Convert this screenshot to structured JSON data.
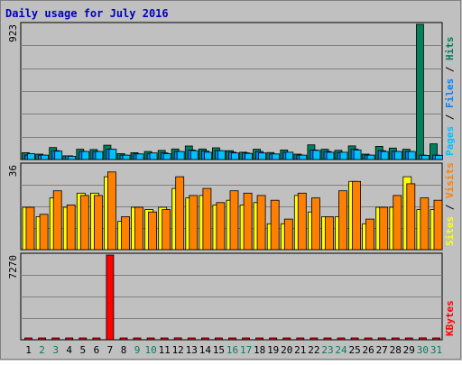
{
  "chart_data": {
    "type": "bar",
    "title": "Daily usage for July 2016",
    "categories": [
      "1",
      "2",
      "3",
      "4",
      "5",
      "6",
      "7",
      "8",
      "9",
      "10",
      "11",
      "12",
      "13",
      "14",
      "15",
      "16",
      "17",
      "18",
      "19",
      "20",
      "21",
      "22",
      "23",
      "24",
      "25",
      "26",
      "27",
      "28",
      "29",
      "30",
      "31"
    ],
    "weekend_days": [
      "2",
      "3",
      "9",
      "10",
      "16",
      "17",
      "23",
      "24",
      "30",
      "31"
    ],
    "panels": [
      {
        "id": "hits-files-pages",
        "max_label": "923",
        "ylim": [
          0,
          923
        ],
        "legend": [
          "Pages",
          "Files",
          "Hits"
        ],
        "series": [
          {
            "name": "Hits",
            "color": "#00805c",
            "values": [
              47,
              37,
              82,
              25,
              70,
              68,
              98,
              40,
              47,
              55,
              62,
              72,
              92,
              72,
              80,
              60,
              50,
              70,
              48,
              65,
              37,
              100,
              70,
              63,
              93,
              37,
              90,
              78,
              70,
              923,
              107
            ]
          },
          {
            "name": "Files",
            "color": "#0080ff",
            "values": [
              30,
              30,
              60,
              25,
              55,
              55,
              70,
              30,
              38,
              40,
              45,
              55,
              65,
              58,
              60,
              50,
              45,
              55,
              38,
              50,
              30,
              65,
              55,
              48,
              70,
              30,
              60,
              55,
              55,
              30,
              30
            ]
          },
          {
            "name": "Pages",
            "color": "#00c0ff",
            "values": [
              40,
              30,
              57,
              22,
              55,
              55,
              70,
              30,
              38,
              45,
              40,
              55,
              60,
              50,
              60,
              45,
              42,
              45,
              38,
              50,
              30,
              62,
              50,
              50,
              65,
              30,
              55,
              55,
              55,
              28,
              28
            ]
          }
        ]
      },
      {
        "id": "visits-sites",
        "max_label": "36",
        "ylim": [
          0,
          36
        ],
        "legend": [
          "Sites",
          "Visits"
        ],
        "series": [
          {
            "name": "Sites",
            "color": "#ffff00",
            "values": [
              18,
              14,
              22,
              18,
              24,
              24,
              31,
              12,
              18,
              17,
              18,
              26,
              22,
              23,
              19,
              21,
              19,
              20,
              11,
              11,
              23,
              16,
              14,
              14,
              29,
              11,
              18,
              18,
              31,
              17,
              17
            ]
          },
          {
            "name": "Visits",
            "color": "#ff8000",
            "values": [
              18,
              15,
              25,
              19,
              23,
              23,
              33,
              14,
              18,
              16,
              17,
              31,
              23,
              26,
              20,
              25,
              24,
              23,
              21,
              13,
              24,
              22,
              14,
              25,
              29,
              13,
              18,
              23,
              28,
              22,
              21
            ]
          }
        ]
      },
      {
        "id": "kbytes",
        "max_label": "7270",
        "ylim": [
          0,
          7270
        ],
        "legend": [
          "KBytes"
        ],
        "series": [
          {
            "name": "KBytes",
            "color": "#ff0000",
            "values": [
              60,
              60,
              100,
              60,
              60,
              60,
              7270,
              100,
              60,
              60,
              60,
              160,
              60,
              60,
              60,
              60,
              60,
              60,
              100,
              60,
              60,
              60,
              60,
              60,
              60,
              60,
              60,
              60,
              60,
              160,
              60
            ]
          }
        ]
      }
    ]
  }
}
